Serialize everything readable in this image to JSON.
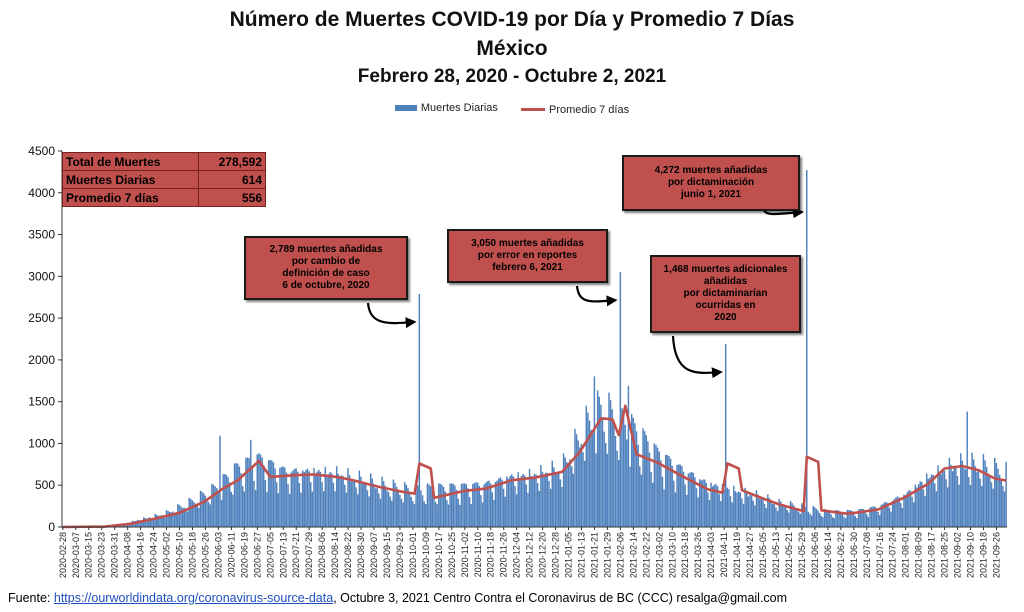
{
  "header": {
    "title": "Número de Muertes COVID-19 por Día y Promedio 7 Días",
    "subtitle_country": "México",
    "subtitle_range": "Febrero 28, 2020 - Octubre 2, 2021"
  },
  "legend": {
    "bar_label": "Muertes Diarias",
    "line_label": "Promedio 7 días"
  },
  "summary": [
    {
      "label": "Total de Muertes",
      "value": "278,592"
    },
    {
      "label": "Muertes Diarias",
      "value": "614"
    },
    {
      "label": "Promedio 7 días",
      "value": "556"
    }
  ],
  "annotations": [
    {
      "lines": [
        "2,789 muertes  añadidas",
        "por cambio de",
        "definición de caso",
        "6 de octubre, 2020"
      ]
    },
    {
      "lines": [
        "3,050 muertes  añadidas",
        "por error en reportes",
        "febrero  6, 2021"
      ]
    },
    {
      "lines": [
        "1,468  muertes adicionales",
        "añadidas",
        "por dictaminarían",
        "ocurridas en",
        "2020"
      ]
    },
    {
      "lines": [
        "4,272  muertes añadidas",
        "por dictaminación",
        "junio 1, 2021"
      ]
    }
  ],
  "footer": {
    "prefix": "Fuente: ",
    "link": "https://ourworldindata.org/coronavirus-source-data",
    "rest": ",  Octubre 3, 2021    Centro Contra el Coronavirus de BC (CCC)    resalga@gmail.com"
  },
  "colors": {
    "bars": "#4f81bd",
    "line": "#c0504d",
    "box": "#c0504d"
  },
  "chart_data": {
    "type": "bar",
    "x_start": "2020-02-28",
    "x_end": "2021-10-02",
    "ylim": [
      0,
      4500
    ],
    "yticks": [
      0,
      500,
      1000,
      1500,
      2000,
      2500,
      3000,
      3500,
      4000,
      4500
    ],
    "grid": false,
    "legend_position": "top",
    "series": [
      {
        "name": "Muertes Diarias",
        "kind": "bar",
        "approximate": true,
        "anchors": [
          [
            "2020-02-28",
            0
          ],
          [
            "2020-03-18",
            0
          ],
          [
            "2020-04-01",
            15
          ],
          [
            "2020-04-15",
            80
          ],
          [
            "2020-05-01",
            150
          ],
          [
            "2020-05-15",
            260
          ],
          [
            "2020-06-01",
            420
          ],
          [
            "2020-06-15",
            640
          ],
          [
            "2020-06-28",
            740
          ],
          [
            "2020-07-15",
            610
          ],
          [
            "2020-08-01",
            620
          ],
          [
            "2020-08-15",
            600
          ],
          [
            "2020-09-01",
            520
          ],
          [
            "2020-09-15",
            450
          ],
          [
            "2020-10-01",
            400
          ],
          [
            "2020-10-15",
            420
          ],
          [
            "2020-11-01",
            440
          ],
          [
            "2020-11-15",
            470
          ],
          [
            "2020-12-01",
            560
          ],
          [
            "2020-12-15",
            590
          ],
          [
            "2021-01-01",
            660
          ],
          [
            "2021-01-15",
            1100
          ],
          [
            "2021-01-25",
            1300
          ],
          [
            "2021-02-05",
            1180
          ],
          [
            "2021-02-15",
            1050
          ],
          [
            "2021-03-01",
            800
          ],
          [
            "2021-03-15",
            640
          ],
          [
            "2021-04-01",
            480
          ],
          [
            "2021-04-15",
            420
          ],
          [
            "2021-05-01",
            350
          ],
          [
            "2021-05-15",
            260
          ],
          [
            "2021-06-01",
            210
          ],
          [
            "2021-06-15",
            160
          ],
          [
            "2021-07-01",
            170
          ],
          [
            "2021-07-15",
            220
          ],
          [
            "2021-08-01",
            360
          ],
          [
            "2021-08-15",
            560
          ],
          [
            "2021-09-01",
            700
          ],
          [
            "2021-09-15",
            690
          ],
          [
            "2021-10-02",
            600
          ]
        ],
        "spikes": [
          [
            "2020-06-04",
            1092
          ],
          [
            "2020-06-23",
            1044
          ],
          [
            "2020-10-05",
            2789
          ],
          [
            "2021-01-21",
            1803
          ],
          [
            "2021-02-06",
            3050
          ],
          [
            "2021-02-11",
            1690
          ],
          [
            "2021-04-12",
            2190
          ],
          [
            "2021-06-01",
            4272
          ],
          [
            "2021-09-08",
            1380
          ]
        ]
      },
      {
        "name": "Promedio 7 días",
        "kind": "line",
        "approximate": true,
        "points": [
          [
            "2020-02-28",
            0
          ],
          [
            "2020-03-25",
            5
          ],
          [
            "2020-04-10",
            40
          ],
          [
            "2020-04-25",
            100
          ],
          [
            "2020-05-10",
            170
          ],
          [
            "2020-05-25",
            300
          ],
          [
            "2020-06-05",
            450
          ],
          [
            "2020-06-15",
            560
          ],
          [
            "2020-06-28",
            790
          ],
          [
            "2020-07-05",
            600
          ],
          [
            "2020-07-20",
            620
          ],
          [
            "2020-08-01",
            630
          ],
          [
            "2020-08-15",
            600
          ],
          [
            "2020-08-25",
            560
          ],
          [
            "2020-09-10",
            480
          ],
          [
            "2020-09-25",
            420
          ],
          [
            "2020-10-02",
            400
          ],
          [
            "2020-10-05",
            760
          ],
          [
            "2020-10-12",
            700
          ],
          [
            "2020-10-14",
            350
          ],
          [
            "2020-11-01",
            430
          ],
          [
            "2020-11-15",
            460
          ],
          [
            "2020-12-01",
            560
          ],
          [
            "2020-12-15",
            590
          ],
          [
            "2021-01-01",
            660
          ],
          [
            "2021-01-12",
            900
          ],
          [
            "2021-01-25",
            1300
          ],
          [
            "2021-02-01",
            1290
          ],
          [
            "2021-02-05",
            1100
          ],
          [
            "2021-02-09",
            1450
          ],
          [
            "2021-02-16",
            870
          ],
          [
            "2021-03-01",
            770
          ],
          [
            "2021-03-15",
            620
          ],
          [
            "2021-04-01",
            450
          ],
          [
            "2021-04-10",
            410
          ],
          [
            "2021-04-13",
            760
          ],
          [
            "2021-04-20",
            700
          ],
          [
            "2021-04-22",
            440
          ],
          [
            "2021-05-01",
            370
          ],
          [
            "2021-05-15",
            270
          ],
          [
            "2021-05-30",
            190
          ],
          [
            "2021-06-01",
            840
          ],
          [
            "2021-06-08",
            780
          ],
          [
            "2021-06-10",
            200
          ],
          [
            "2021-06-25",
            160
          ],
          [
            "2021-07-01",
            170
          ],
          [
            "2021-07-15",
            210
          ],
          [
            "2021-08-01",
            360
          ],
          [
            "2021-08-15",
            520
          ],
          [
            "2021-08-25",
            700
          ],
          [
            "2021-09-05",
            730
          ],
          [
            "2021-09-15",
            680
          ],
          [
            "2021-09-25",
            580
          ],
          [
            "2021-10-02",
            556
          ]
        ]
      }
    ],
    "annotation_targets": [
      [
        "2020-10-05",
        2789
      ],
      [
        "2021-02-06",
        3050
      ],
      [
        "2021-04-12",
        2190
      ],
      [
        "2021-06-01",
        4272
      ]
    ]
  }
}
